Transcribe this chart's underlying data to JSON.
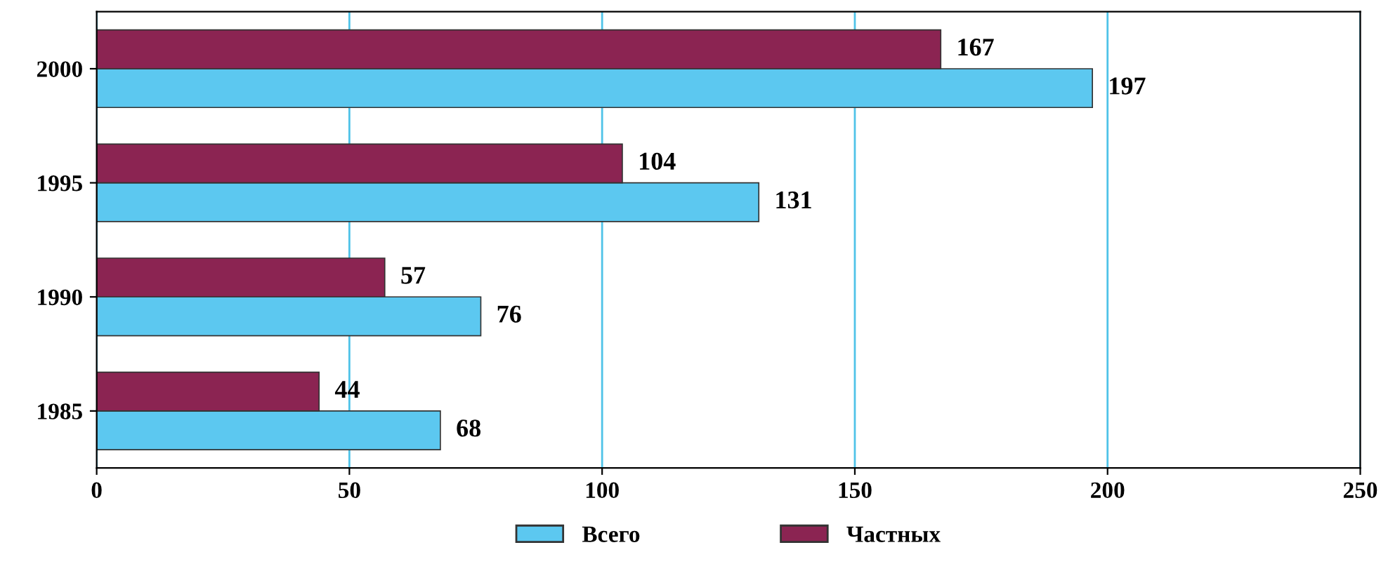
{
  "chart_data": {
    "type": "bar",
    "orientation": "horizontal",
    "categories": [
      "2000",
      "1995",
      "1990",
      "1985"
    ],
    "series": [
      {
        "name": "Всего",
        "color": "#5cc8f0",
        "values": [
          197,
          131,
          76,
          68
        ]
      },
      {
        "name": "Частных",
        "color": "#8b2452",
        "values": [
          167,
          104,
          57,
          44
        ]
      }
    ],
    "xlim": [
      0,
      250
    ],
    "xticks": [
      0,
      50,
      100,
      150,
      200,
      250
    ],
    "grid": "x",
    "legend": "bottom",
    "data_labels": true
  }
}
